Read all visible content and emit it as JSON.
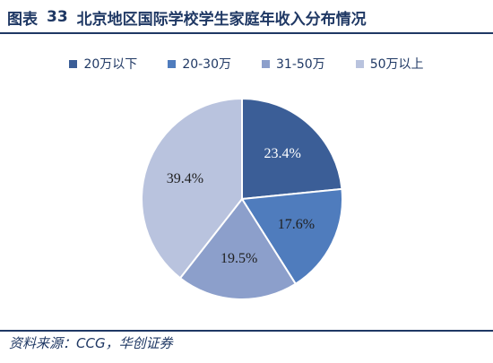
{
  "title": {
    "prefix": "图表",
    "number": "33",
    "text": "北京地区国际学校学生家庭年收入分布情况"
  },
  "chart_data": {
    "type": "pie",
    "categories": [
      "20万以下",
      "20-30万",
      "31-50万",
      "50万以上"
    ],
    "values": [
      23.4,
      17.6,
      19.5,
      39.4
    ],
    "data_labels": [
      "23.4%",
      "17.6%",
      "19.5%",
      "39.4%"
    ],
    "colors": [
      "#3b5e97",
      "#4f7cbd",
      "#8c9fcb",
      "#b9c3de"
    ],
    "label_colors": [
      "#ffffff",
      "#1f1f1f",
      "#1f1f1f",
      "#1f1f1f"
    ],
    "legend_position": "top"
  },
  "source": "资料来源：CCG，华创证券"
}
